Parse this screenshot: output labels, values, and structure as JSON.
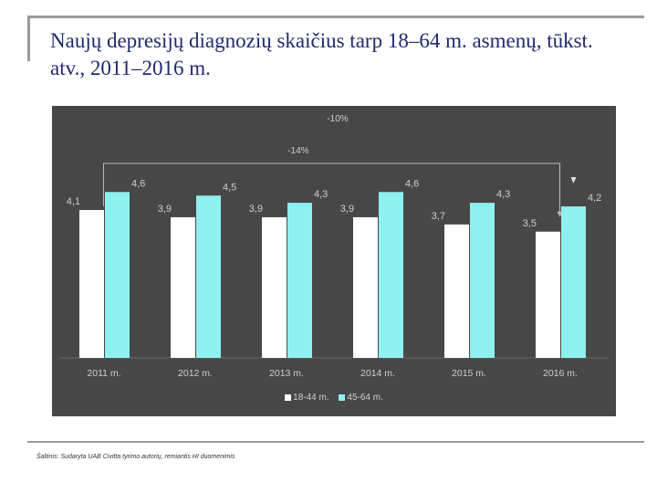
{
  "title": "Naujų depresijų diagnozių skaičius tarp 18–64 m. asmenų, tūkst. atv., 2011–2016 m.",
  "source": "Šaltinis: Sudaryta UAB Civitta tyrimo autorių, remiantis HI duomenimis",
  "colors": {
    "series1": "#ffffff",
    "series2": "#8ff0f0",
    "panel": "#474747",
    "text": "#cfcfcf"
  },
  "chart_data": {
    "type": "bar",
    "categories": [
      "2011 m.",
      "2012 m.",
      "2013 m.",
      "2014 m.",
      "2015 m.",
      "2016 m."
    ],
    "series": [
      {
        "name": "18-44 m.",
        "values": [
          4.1,
          3.9,
          3.9,
          3.9,
          3.7,
          3.5
        ],
        "labels": [
          "4,1",
          "3,9",
          "3,9",
          "3,9",
          "3,7",
          "3,5"
        ]
      },
      {
        "name": "45-64 m.",
        "values": [
          4.6,
          4.5,
          4.3,
          4.6,
          4.3,
          4.2
        ],
        "labels": [
          "4,6",
          "4,5",
          "4,3",
          "4,6",
          "4,3",
          "4,2"
        ]
      }
    ],
    "annotations": [
      "-10%",
      "-14%"
    ],
    "ylim": [
      0,
      5.5
    ],
    "legend": "bottom",
    "grid": false
  }
}
